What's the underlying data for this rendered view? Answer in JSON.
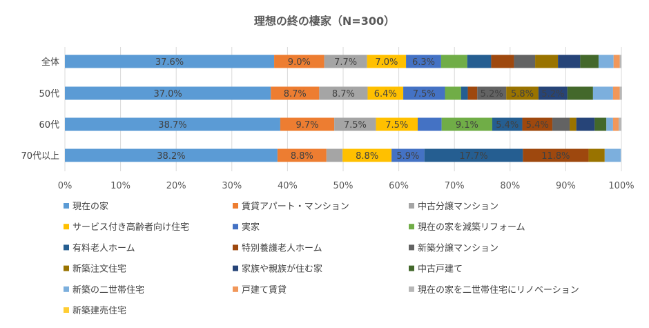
{
  "chart_data": {
    "type": "bar",
    "orientation": "horizontal",
    "stacked": true,
    "title": "理想の終の棲家（N=300）",
    "categories": [
      "全体",
      "50代",
      "60代",
      "70代以上"
    ],
    "xlim": [
      0,
      100
    ],
    "x_ticks": [
      "0%",
      "10%",
      "20%",
      "30%",
      "40%",
      "50%",
      "60%",
      "70%",
      "80%",
      "90%",
      "100%"
    ],
    "grid": "vertical",
    "legend_position": "bottom",
    "series": [
      {
        "name": "現在の家",
        "color": "#5B9BD5",
        "values": [
          37.6,
          37.0,
          38.7,
          38.2
        ]
      },
      {
        "name": "賃貸アパート・マンション",
        "color": "#ED7D31",
        "values": [
          9.0,
          8.7,
          9.7,
          8.8
        ]
      },
      {
        "name": "中古分譲マンション",
        "color": "#A5A5A5",
        "values": [
          7.7,
          8.7,
          7.5,
          2.9
        ]
      },
      {
        "name": "サービス付き高齢者向け住宅",
        "color": "#FFC000",
        "values": [
          7.0,
          6.4,
          7.5,
          8.8
        ]
      },
      {
        "name": "実家",
        "color": "#4472C4",
        "values": [
          6.3,
          7.5,
          4.3,
          5.9
        ]
      },
      {
        "name": "現在の家を減築リフォーム",
        "color": "#70AD47",
        "values": [
          4.7,
          2.9,
          9.1,
          0
        ]
      },
      {
        "name": "有料老人ホーム",
        "color": "#255E91",
        "values": [
          4.3,
          1.2,
          5.4,
          17.7
        ]
      },
      {
        "name": "特別養護老人ホーム",
        "color": "#9E480E",
        "values": [
          4.1,
          1.7,
          5.4,
          11.8
        ]
      },
      {
        "name": "新築分譲マンション",
        "color": "#636363",
        "values": [
          3.8,
          5.2,
          3.1,
          0
        ]
      },
      {
        "name": "新築注文住宅",
        "color": "#997300",
        "values": [
          4.1,
          5.8,
          1.2,
          2.9
        ]
      },
      {
        "name": "家族や親族が住む家",
        "color": "#264478",
        "values": [
          4.0,
          5.2,
          3.3,
          0
        ]
      },
      {
        "name": "中古戸建て",
        "color": "#43682B",
        "values": [
          3.3,
          4.6,
          2.1,
          0
        ]
      },
      {
        "name": "新築の二世帯住宅",
        "color": "#7CAFDD",
        "values": [
          2.7,
          3.6,
          1.2,
          2.9
        ]
      },
      {
        "name": "戸建て賃貸",
        "color": "#F1975A",
        "values": [
          1.1,
          1.2,
          1.0,
          0
        ]
      },
      {
        "name": "現在の家を二世帯住宅にリノベーション",
        "color": "#B7B7B7",
        "values": [
          0.3,
          0.4,
          0.5,
          0
        ]
      },
      {
        "name": "新築建売住宅",
        "color": "#FFCD33",
        "values": [
          0,
          0,
          0,
          0
        ]
      }
    ],
    "data_labels": [
      [
        "37.6%",
        "9.0%",
        "7.7%",
        "7.0%",
        "6.3%",
        "",
        "",
        "",
        "",
        "",
        "",
        "",
        "",
        "",
        "",
        ""
      ],
      [
        "37.0%",
        "8.7%",
        "8.7%",
        "6.4%",
        "7.5%",
        "",
        "",
        "",
        "5.2%",
        "5.8%",
        "5.2%",
        "",
        "",
        "",
        "",
        ""
      ],
      [
        "38.7%",
        "9.7%",
        "7.5%",
        "7.5%",
        "",
        "9.1%",
        "5.4%",
        "5.4%",
        "",
        "",
        "",
        "",
        "",
        "",
        "",
        ""
      ],
      [
        "38.2%",
        "8.8%",
        "",
        "8.8%",
        "5.9%",
        "",
        "17.7%",
        "11.8%",
        "",
        "",
        "",
        "",
        "",
        "",
        "",
        ""
      ]
    ]
  }
}
